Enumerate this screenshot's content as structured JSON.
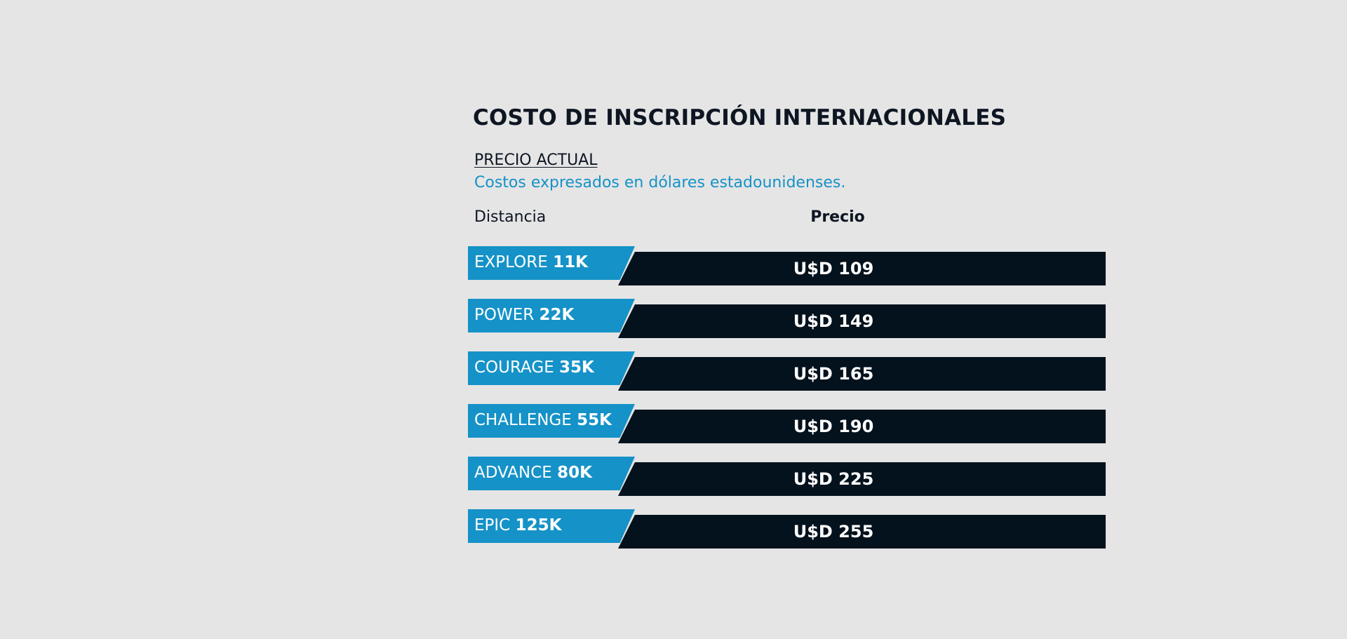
{
  "title": "COSTO DE INSCRIPCIÓN INTERNACIONALES",
  "subtitle": "PRECIO ACTUAL",
  "note": "Costos expresados en dólares estadounidenses.",
  "columns": {
    "distance": "Distancia",
    "price": "Precio"
  },
  "rows": [
    {
      "name": "EXPLORE",
      "distance": "11K",
      "price": "U$D 109"
    },
    {
      "name": "POWER",
      "distance": "22K",
      "price": "U$D 149"
    },
    {
      "name": "COURAGE",
      "distance": "35K",
      "price": "U$D 165"
    },
    {
      "name": "CHALLENGE",
      "distance": "55K",
      "price": "U$D 190"
    },
    {
      "name": "ADVANCE",
      "distance": "80K",
      "price": "U$D 225"
    },
    {
      "name": "EPIC",
      "distance": "125K",
      "price": "U$D 255"
    }
  ],
  "colors": {
    "accent": "#1592c8",
    "dark": "#04121d",
    "background": "#e5e5e5"
  }
}
